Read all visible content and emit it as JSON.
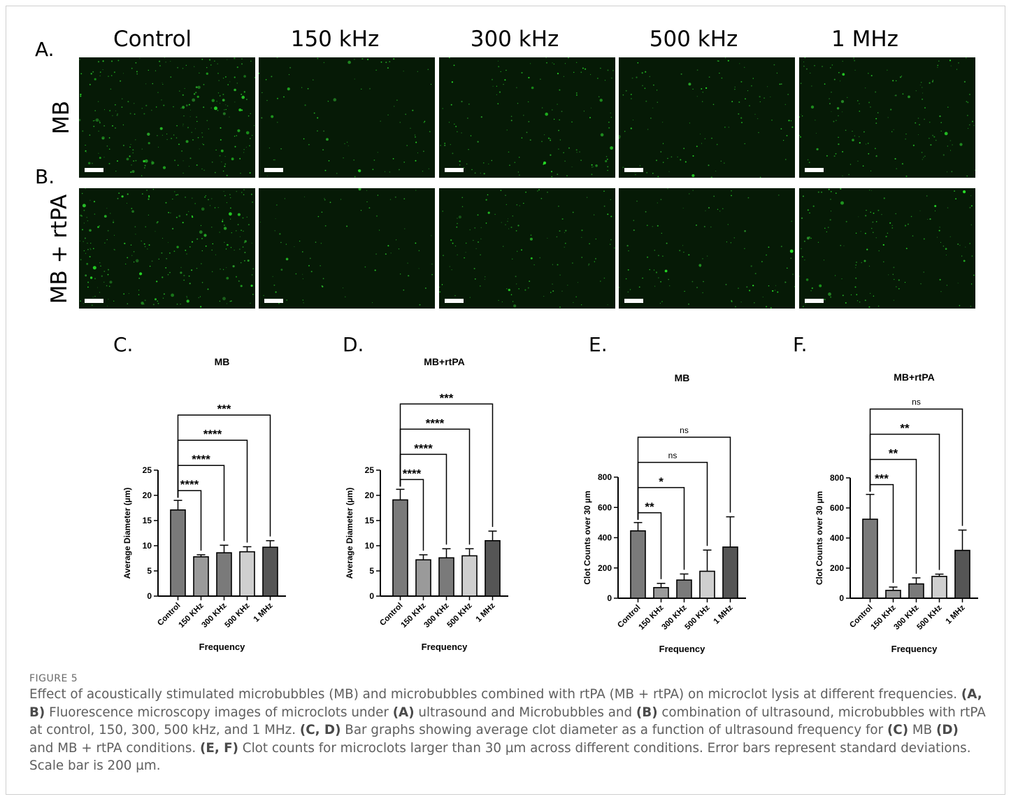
{
  "panels": {
    "a": "A.",
    "b": "B.",
    "c": "C.",
    "d": "D.",
    "e": "E.",
    "f": "F."
  },
  "columns": [
    "Control",
    "150 kHz",
    "300 kHz",
    "500 kHz",
    "1 MHz"
  ],
  "rows": [
    "MB",
    "MB + rtPA"
  ],
  "colors": {
    "micro_bg": "#061a06",
    "micro_dot": "#39c439",
    "bar_dark": "#555555",
    "bar_mid": "#7a7a7a",
    "bar_light": "#cfcfcf"
  },
  "micro_density": [
    [
      1.0,
      0.35,
      0.55,
      0.45,
      0.6
    ],
    [
      1.0,
      0.3,
      0.5,
      0.4,
      0.55
    ]
  ],
  "chart_data": [
    {
      "type": "bar",
      "title": "MB",
      "xlabel": "Frequency",
      "ylabel": "Average Diameter (µm)",
      "categories": [
        "Control",
        "150 KHz",
        "300 KHz",
        "500 KHz",
        "1 MHz"
      ],
      "values": [
        17.1,
        7.8,
        8.6,
        8.8,
        9.7
      ],
      "errors": [
        1.9,
        0.4,
        1.5,
        1.0,
        1.3
      ],
      "shades": [
        "#7a7a7a",
        "#9a9a9a",
        "#7a7a7a",
        "#cfcfcf",
        "#555555"
      ],
      "ylim": [
        0,
        25
      ],
      "yticks": [
        0,
        5,
        10,
        15,
        20,
        25
      ],
      "sig": [
        {
          "to": 1,
          "label": "****"
        },
        {
          "to": 2,
          "label": "****"
        },
        {
          "to": 3,
          "label": "****"
        },
        {
          "to": 4,
          "label": "***"
        }
      ]
    },
    {
      "type": "bar",
      "title": "MB+rtPA",
      "xlabel": "Frequency",
      "ylabel": "Average Diameter (µm)",
      "categories": [
        "Control",
        "150 KHz",
        "300 KHz",
        "500 KHz",
        "1 MHz"
      ],
      "values": [
        19.1,
        7.2,
        7.6,
        8.0,
        11.0
      ],
      "errors": [
        2.1,
        1.0,
        1.8,
        1.4,
        1.9
      ],
      "shades": [
        "#7a7a7a",
        "#9a9a9a",
        "#7a7a7a",
        "#cfcfcf",
        "#555555"
      ],
      "ylim": [
        0,
        25
      ],
      "yticks": [
        0,
        5,
        10,
        15,
        20,
        25
      ],
      "sig": [
        {
          "to": 1,
          "label": "****"
        },
        {
          "to": 2,
          "label": "****"
        },
        {
          "to": 3,
          "label": "****"
        },
        {
          "to": 4,
          "label": "***"
        }
      ]
    },
    {
      "type": "bar",
      "title": "MB",
      "xlabel": "Frequency",
      "ylabel": "Clot Counts over 30 µm",
      "categories": [
        "Control",
        "150 KHz",
        "300 KHz",
        "500 KHz",
        "1 MHz"
      ],
      "values": [
        445,
        70,
        120,
        178,
        338
      ],
      "errors": [
        55,
        28,
        40,
        140,
        200
      ],
      "shades": [
        "#7a7a7a",
        "#9a9a9a",
        "#7a7a7a",
        "#cfcfcf",
        "#555555"
      ],
      "ylim": [
        0,
        800
      ],
      "yticks": [
        0,
        200,
        400,
        600,
        800
      ],
      "sig": [
        {
          "to": 1,
          "label": "**"
        },
        {
          "to": 2,
          "label": "*"
        },
        {
          "to": 3,
          "label": "ns"
        },
        {
          "to": 4,
          "label": "ns"
        }
      ]
    },
    {
      "type": "bar",
      "title": "MB+rtPA",
      "xlabel": "Frequency",
      "ylabel": "Clot Counts over 30 µm",
      "categories": [
        "Control",
        "150 KHz",
        "300 KHz",
        "500 KHz",
        "1 MHz"
      ],
      "values": [
        525,
        52,
        95,
        145,
        318
      ],
      "errors": [
        165,
        22,
        40,
        15,
        135
      ],
      "shades": [
        "#7a7a7a",
        "#9a9a9a",
        "#7a7a7a",
        "#cfcfcf",
        "#555555"
      ],
      "ylim": [
        0,
        800
      ],
      "yticks": [
        0,
        200,
        400,
        600,
        800
      ],
      "sig": [
        {
          "to": 1,
          "label": "***"
        },
        {
          "to": 2,
          "label": "**"
        },
        {
          "to": 3,
          "label": "**"
        },
        {
          "to": 4,
          "label": "ns"
        }
      ]
    }
  ],
  "figure": {
    "label": "FIGURE 5",
    "caption_parts": [
      {
        "t": "Effect of acoustically stimulated microbubbles (MB) and microbubbles combined with rtPA (MB + rtPA) on microclot lysis at different frequencies. ",
        "b": false
      },
      {
        "t": "(A, B)",
        "b": true
      },
      {
        "t": " Fluorescence microscopy images of microclots under ",
        "b": false
      },
      {
        "t": "(A)",
        "b": true
      },
      {
        "t": " ultrasound and Microbubbles and ",
        "b": false
      },
      {
        "t": "(B)",
        "b": true
      },
      {
        "t": " combination of ultrasound, microbubbles with rtPA at control, 150, 300, 500 kHz, and 1 MHz. ",
        "b": false
      },
      {
        "t": "(C, D)",
        "b": true
      },
      {
        "t": " Bar graphs showing average clot diameter as a function of ultrasound frequency for ",
        "b": false
      },
      {
        "t": "(C)",
        "b": true
      },
      {
        "t": " MB ",
        "b": false
      },
      {
        "t": "(D)",
        "b": true
      },
      {
        "t": " and MB + rtPA conditions. ",
        "b": false
      },
      {
        "t": "(E, F)",
        "b": true
      },
      {
        "t": " Clot counts for microclots larger than 30 µm across different conditions. Error bars represent standard deviations. Scale bar is 200 µm.",
        "b": false
      }
    ]
  }
}
